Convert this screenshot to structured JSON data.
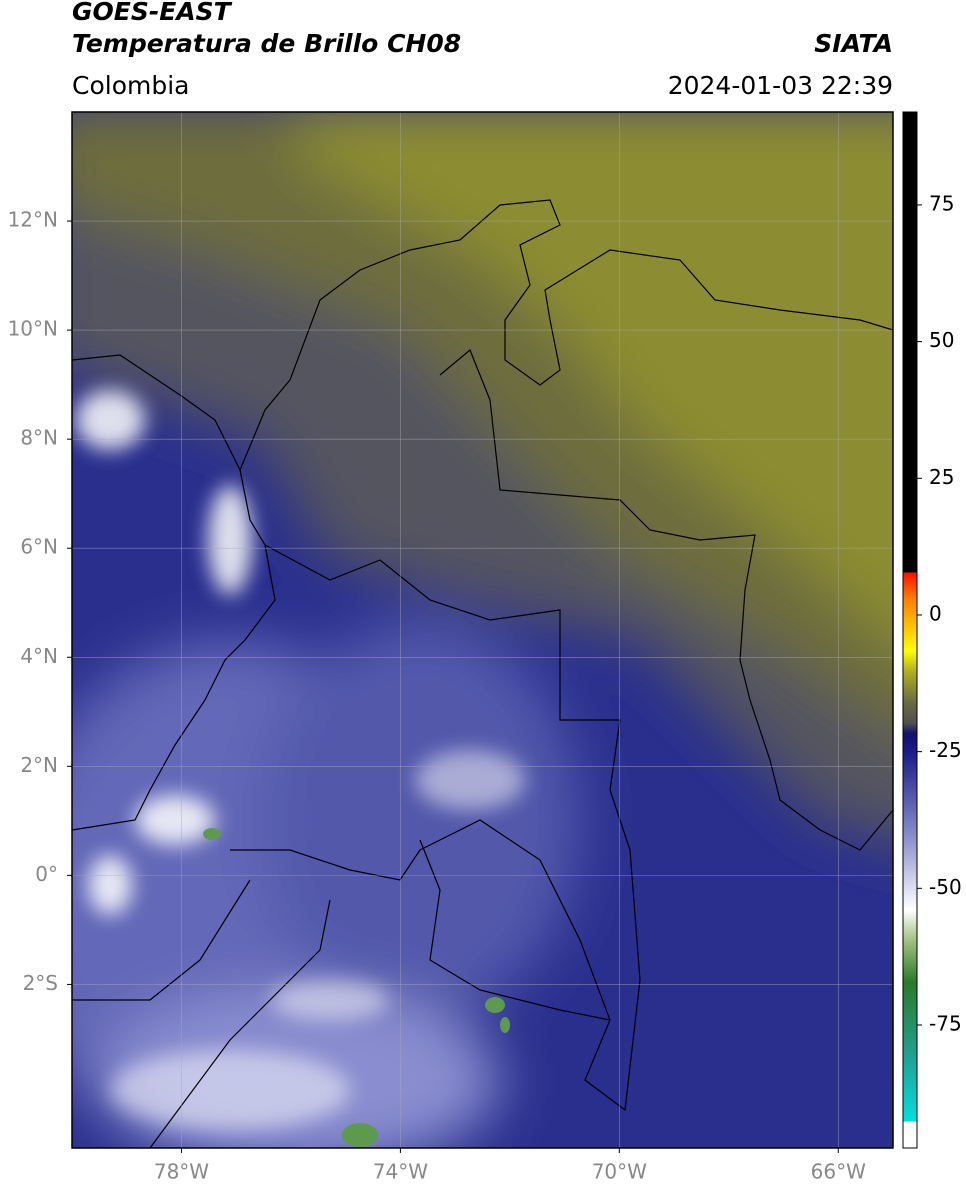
{
  "header": {
    "title": "GOES-EAST",
    "subtitle": "Temperatura de Brillo CH08",
    "source": "SIATA",
    "region": "Colombia",
    "datetime": "2024-01-03 22:39"
  },
  "map": {
    "xlim": [
      -80,
      -65
    ],
    "ylim": [
      -5,
      14
    ],
    "xticks": [
      {
        "value": -78,
        "label": "78°W"
      },
      {
        "value": -74,
        "label": "74°W"
      },
      {
        "value": -70,
        "label": "70°W"
      },
      {
        "value": -66,
        "label": "66°W"
      }
    ],
    "yticks": [
      {
        "value": 12,
        "label": "12°N"
      },
      {
        "value": 10,
        "label": "10°N"
      },
      {
        "value": 8,
        "label": "8°N"
      },
      {
        "value": 6,
        "label": "6°N"
      },
      {
        "value": 4,
        "label": "4°N"
      },
      {
        "value": 2,
        "label": "2°N"
      },
      {
        "value": 0,
        "label": "0°"
      },
      {
        "value": -2,
        "label": "2°S"
      }
    ],
    "grid": true
  },
  "colorbar": {
    "ylim": [
      -97.5,
      92
    ],
    "yticks": [
      75,
      50,
      25,
      0,
      -25,
      -50,
      -75
    ]
  }
}
